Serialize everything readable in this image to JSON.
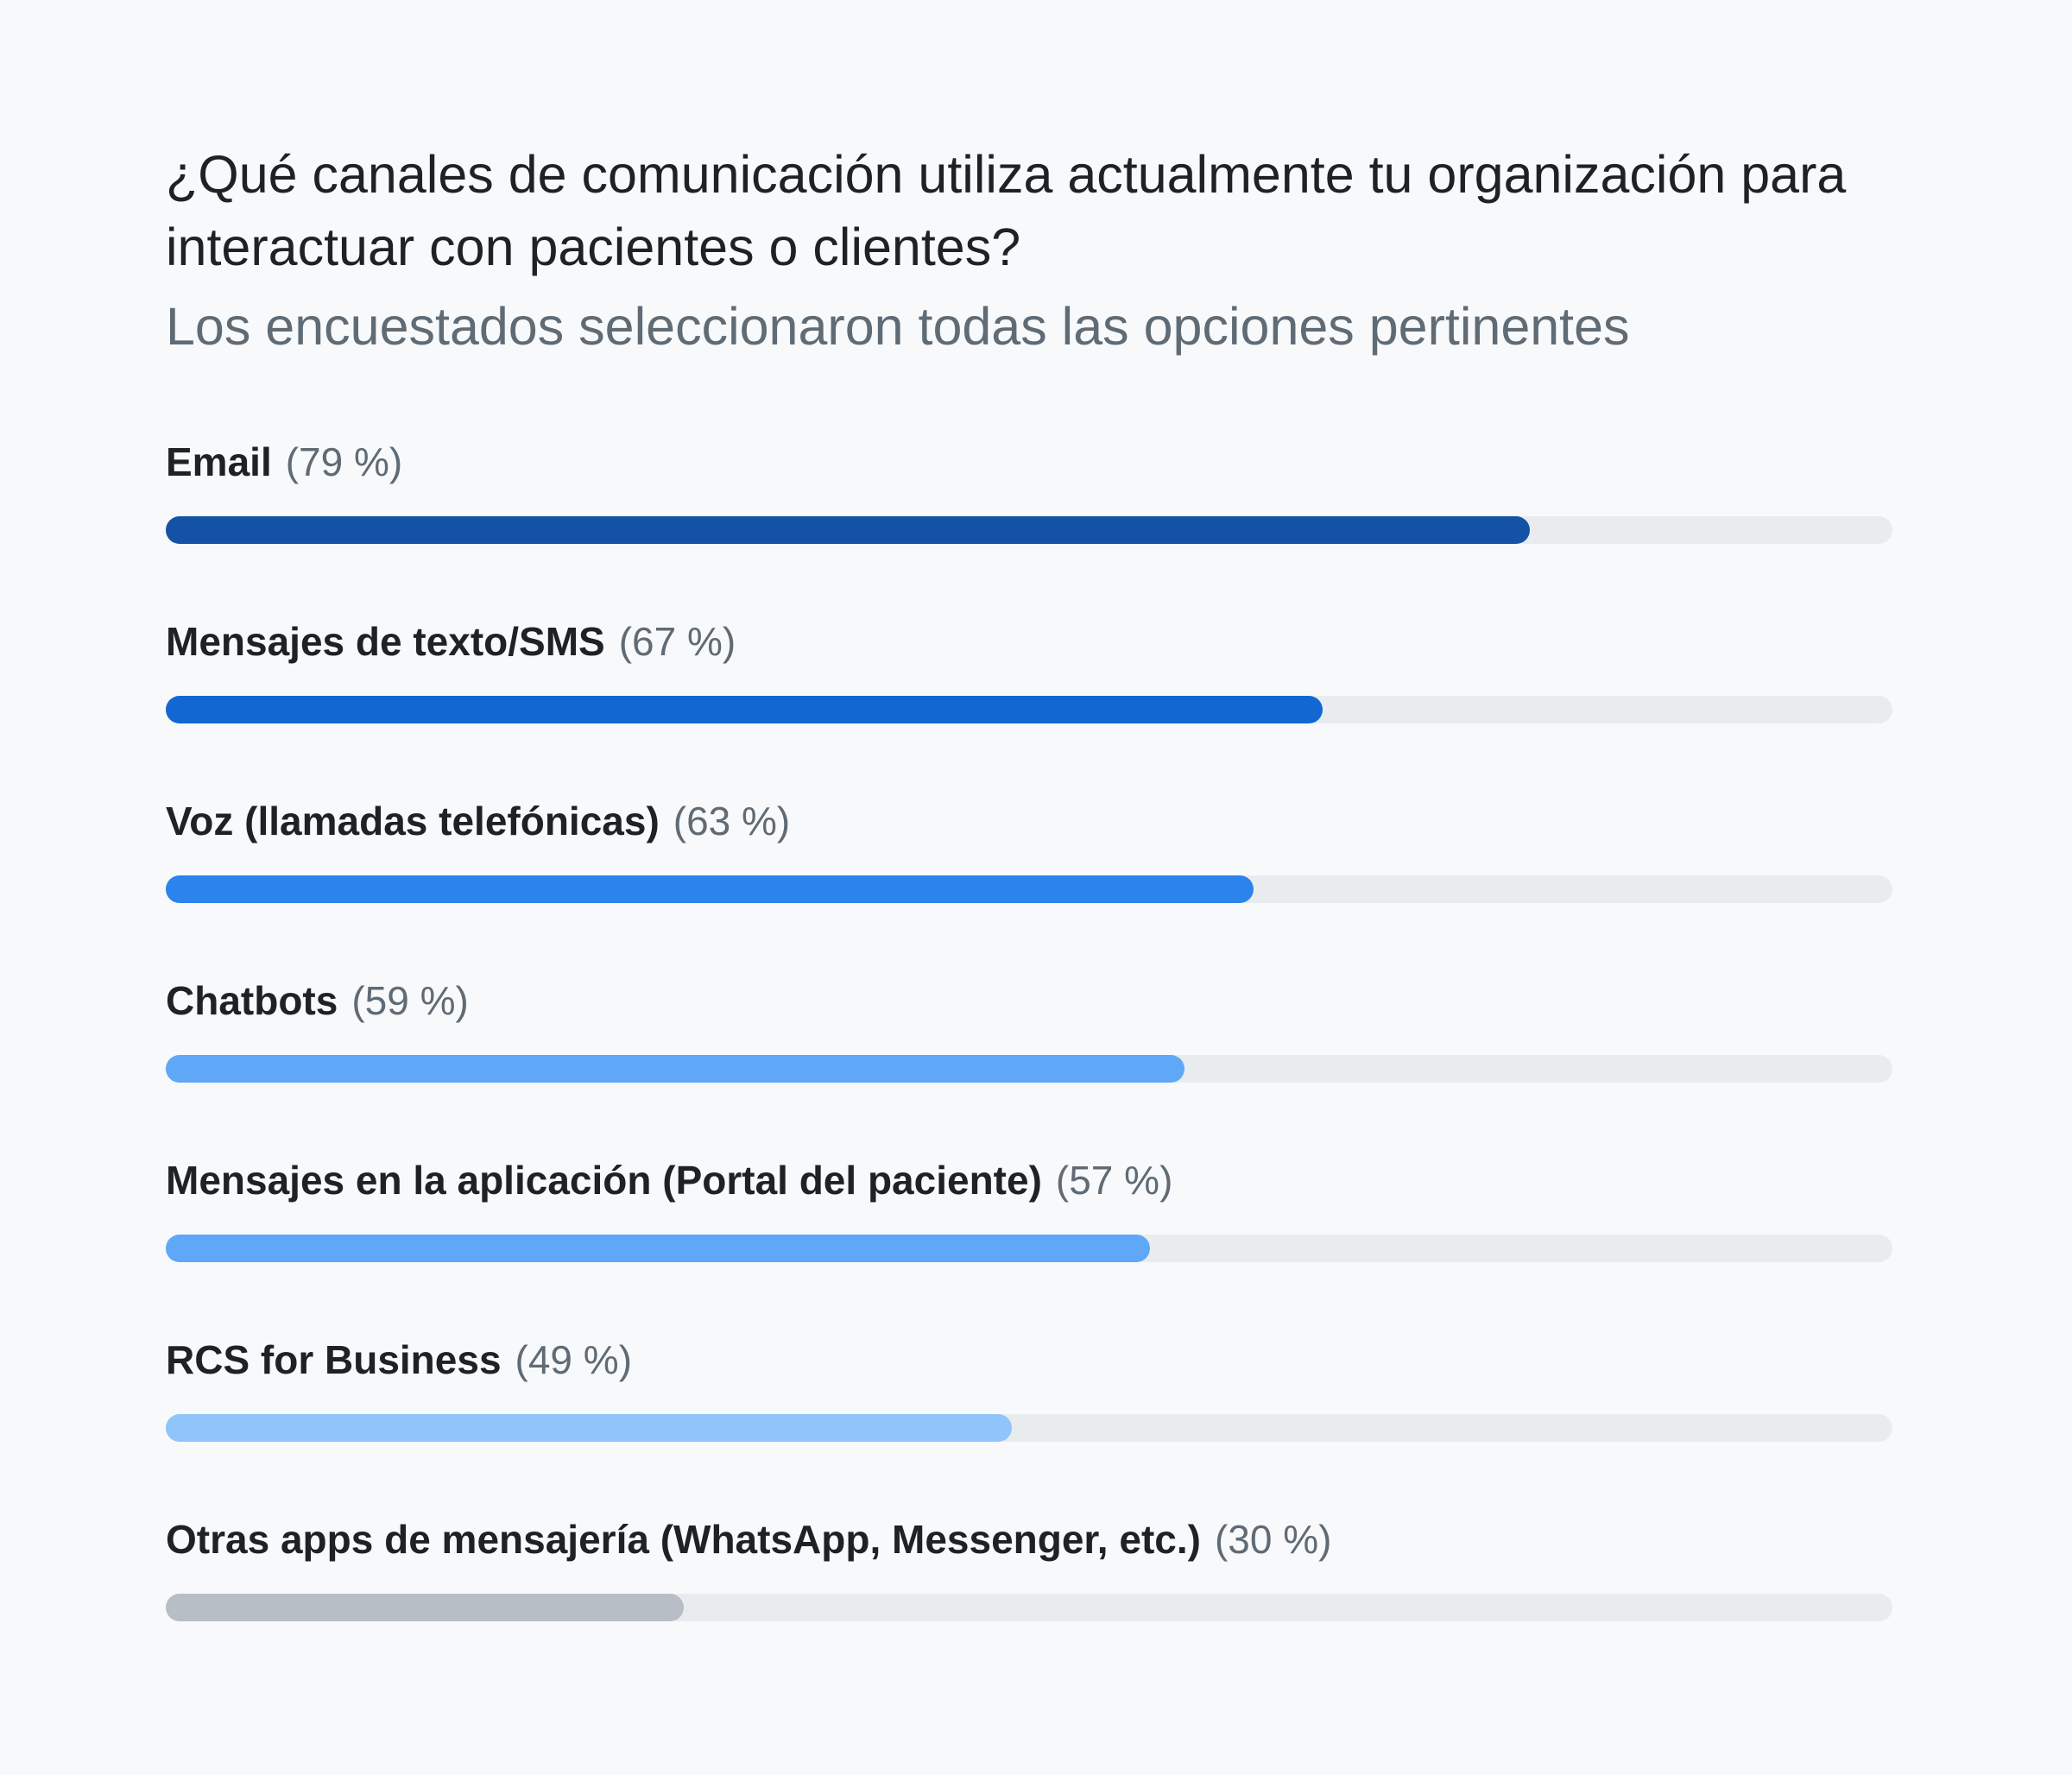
{
  "chart_data": {
    "type": "bar",
    "orientation": "horizontal",
    "title": "¿Qué canales de comunicación utiliza actualmente tu organización para interactuar con pacientes o clientes?",
    "subtitle": "Los encuestados seleccionaron todas las opciones pertinentes",
    "ylim": [
      0,
      100
    ],
    "categories": [
      "Email",
      "Mensajes de texto/SMS",
      "Voz (llamadas telefónicas)",
      "Chatbots",
      "Mensajes en la aplicación (Portal del paciente)",
      "RCS for Business",
      "Otras apps de mensajería (WhatsApp, Messenger, etc.)"
    ],
    "values": [
      79,
      67,
      63,
      59,
      57,
      49,
      30
    ],
    "value_labels": [
      "(79 %)",
      "(67 %)",
      "(63 %)",
      "(59 %)",
      "(57 %)",
      "(49 %)",
      "(30 %)"
    ],
    "colors": [
      "#1452a6",
      "#1367d3",
      "#2b83ec",
      "#5fa7f7",
      "#5fa7f7",
      "#90c4fa",
      "#b8bec6"
    ],
    "track_color": "#e9ecef",
    "grid": false,
    "legend": "none"
  }
}
